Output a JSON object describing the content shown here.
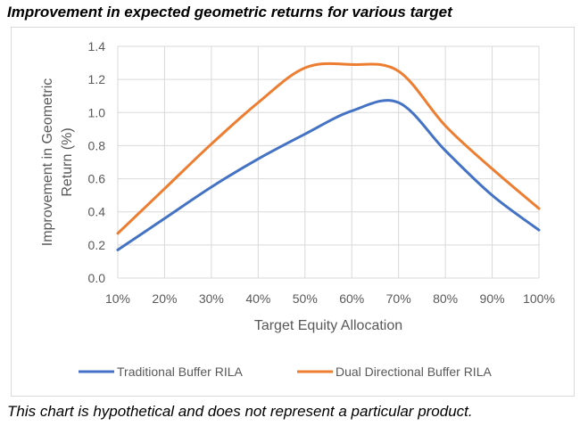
{
  "chart_data": {
    "type": "line",
    "title": "Improvement in expected geometric returns for various target",
    "xlabel": "Target Equity Allocation",
    "ylabel": "Improvement in Geometric Return (%)",
    "ylabel_lines": [
      "Improvement in Geometric",
      "Return (%)"
    ],
    "categories": [
      "10%",
      "20%",
      "30%",
      "40%",
      "50%",
      "60%",
      "70%",
      "80%",
      "90%",
      "100%"
    ],
    "x": [
      10,
      20,
      30,
      40,
      50,
      60,
      70,
      80,
      90,
      100
    ],
    "ylim": [
      0,
      1.4
    ],
    "yticks": [
      "0.0",
      "0.2",
      "0.4",
      "0.6",
      "0.8",
      "1.0",
      "1.2",
      "1.4"
    ],
    "grid": true,
    "legend_position": "bottom",
    "series": [
      {
        "name": "Traditional Buffer RILA",
        "color": "#4472c4",
        "values": [
          0.17,
          0.36,
          0.55,
          0.72,
          0.87,
          1.01,
          1.06,
          0.77,
          0.5,
          0.29
        ]
      },
      {
        "name": "Dual Directional Buffer RILA",
        "color": "#ed7d31",
        "values": [
          0.27,
          0.54,
          0.81,
          1.06,
          1.27,
          1.29,
          1.25,
          0.92,
          0.66,
          0.42
        ]
      }
    ]
  },
  "footnote": "This chart is hypothetical and does not represent a particular product."
}
